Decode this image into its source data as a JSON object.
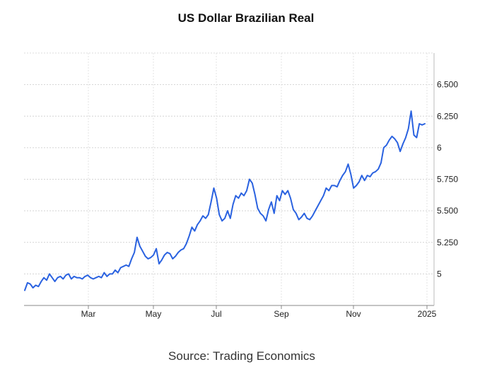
{
  "chart_data": {
    "type": "line",
    "title": "US Dollar Brazilian Real",
    "source": "Source: Trading Economics",
    "xlabel": "",
    "ylabel": "",
    "x_ticks": [
      "Mar",
      "May",
      "Jul",
      "Sep",
      "Nov",
      "2025"
    ],
    "y_ticks": [
      "5",
      "5.250",
      "5.500",
      "5.750",
      "6",
      "6.250",
      "6.500"
    ],
    "ylim": [
      4.75,
      6.75
    ],
    "y_axis_position": "right",
    "grid": true,
    "legend": "none",
    "line_color": "#2a62e0",
    "series": [
      {
        "values": [
          4.87,
          4.93,
          4.92,
          4.89,
          4.91,
          4.9,
          4.94,
          4.97,
          4.95,
          5.0,
          4.97,
          4.94,
          4.97,
          4.98,
          4.96,
          4.99,
          5.0,
          4.96,
          4.98,
          4.97,
          4.97,
          4.96,
          4.98,
          4.99,
          4.97,
          4.96,
          4.97,
          4.98,
          4.97,
          5.01,
          4.98,
          5.0,
          5.0,
          5.03,
          5.01,
          5.05,
          5.06,
          5.07,
          5.06,
          5.12,
          5.17,
          5.29,
          5.22,
          5.18,
          5.14,
          5.12,
          5.13,
          5.15,
          5.2,
          5.08,
          5.11,
          5.15,
          5.17,
          5.16,
          5.12,
          5.14,
          5.17,
          5.19,
          5.2,
          5.24,
          5.3,
          5.37,
          5.34,
          5.39,
          5.42,
          5.46,
          5.44,
          5.47,
          5.57,
          5.68,
          5.6,
          5.47,
          5.42,
          5.44,
          5.5,
          5.44,
          5.55,
          5.62,
          5.6,
          5.64,
          5.62,
          5.66,
          5.75,
          5.72,
          5.63,
          5.52,
          5.48,
          5.46,
          5.42,
          5.51,
          5.57,
          5.48,
          5.62,
          5.58,
          5.66,
          5.63,
          5.66,
          5.6,
          5.51,
          5.48,
          5.43,
          5.45,
          5.48,
          5.44,
          5.43,
          5.46,
          5.5,
          5.54,
          5.58,
          5.62,
          5.68,
          5.66,
          5.7,
          5.7,
          5.69,
          5.74,
          5.78,
          5.81,
          5.87,
          5.79,
          5.68,
          5.7,
          5.73,
          5.78,
          5.74,
          5.78,
          5.77,
          5.8,
          5.81,
          5.83,
          5.88,
          6.0,
          6.02,
          6.06,
          6.09,
          6.07,
          6.04,
          5.97,
          6.03,
          6.08,
          6.15,
          6.29,
          6.1,
          6.08,
          6.19,
          6.18,
          6.19
        ]
      }
    ]
  }
}
